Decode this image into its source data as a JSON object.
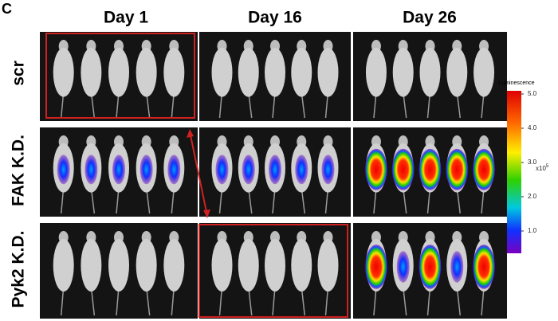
{
  "panel_label": "C",
  "columns": [
    "Day 1",
    "Day 16",
    "Day 26"
  ],
  "rows": [
    "scr",
    "FAK K.D.",
    "Pyk2 K.D."
  ],
  "colorbar": {
    "title": "Luminescence",
    "ticks": [
      {
        "value": 5,
        "label": "5.0"
      },
      {
        "value": 4,
        "label": "4.0"
      },
      {
        "value": 3,
        "label": "3.0"
      },
      {
        "value": 2,
        "label": "2.0"
      },
      {
        "value": 1,
        "label": "1.0"
      }
    ],
    "multiplier": "x10",
    "exponent": "5"
  }
}
